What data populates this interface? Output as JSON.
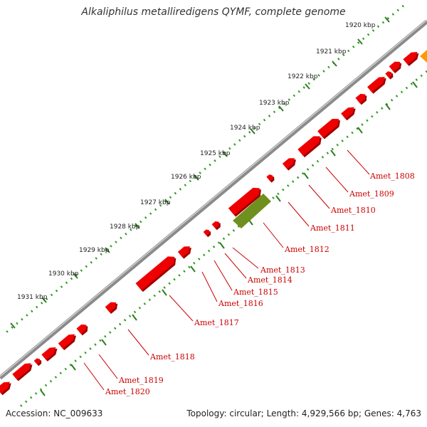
{
  "title": "Alkaliphilus metalliredigens QYMF, complete genome",
  "footer": {
    "accession": "Accession: NC_009633",
    "summary": "Topology: circular; Length: 4,929,566 bp; Genes: 4,763"
  },
  "colors": {
    "backbone": "#8a8a8a",
    "tick_major": "#2e7d1f",
    "tick_minor": "#2e9a1f",
    "gene_forward": "#ee0000",
    "gene_highlight": "#6f8f1e",
    "gene_other": "#ff9900",
    "label": "#cc0000"
  },
  "scale_labels": [
    "1920 kbp",
    "1921 kbp",
    "1922 kbp",
    "1923 kbp",
    "1924 kbp",
    "1925 kbp",
    "1926 kbp",
    "1927 kbp",
    "1928 kbp",
    "1929 kbp",
    "1930 kbp",
    "1931 kbp"
  ],
  "gene_labels": [
    "Amet_1808",
    "Amet_1809",
    "Amet_1810",
    "Amet_1811",
    "Amet_1812",
    "Amet_1813",
    "Amet_1814",
    "Amet_1815",
    "Amet_1816",
    "Amet_1817",
    "Amet_1818",
    "Amet_1819",
    "Amet_1820"
  ]
}
